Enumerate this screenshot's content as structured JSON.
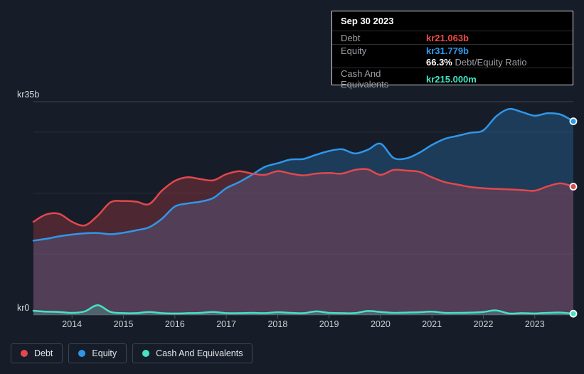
{
  "page": {
    "background": "#171d28"
  },
  "tooltip": {
    "date": "Sep 30 2023",
    "debt": {
      "label": "Debt",
      "value": "kr21.063b",
      "color": "#ef4a45"
    },
    "equity": {
      "label": "Equity",
      "value": "kr31.779b",
      "color": "#2d9bf0"
    },
    "ratio": {
      "value": "66.3%",
      "label": " Debt/Equity Ratio"
    },
    "cash": {
      "label": "Cash And Equivalents",
      "value": "kr215.000m",
      "color": "#40e6c6"
    }
  },
  "legend": {
    "items": [
      {
        "label": "Debt",
        "color": "#e2484d"
      },
      {
        "label": "Equity",
        "color": "#2f97ea"
      },
      {
        "label": "Cash And Equivalents",
        "color": "#45e3c4"
      }
    ]
  },
  "chart_data": {
    "type": "area",
    "title": "Debt and Equity history (kr, billions)",
    "xlabel": "",
    "ylabel": "",
    "ylim": [
      0,
      35
    ],
    "grid": true,
    "legend_position": "bottom-left",
    "y_ticks": [
      {
        "value": 35,
        "label": "kr35b"
      },
      {
        "value": 0,
        "label": "kr0"
      }
    ],
    "y_gridlines": [
      35,
      30,
      20,
      10,
      0
    ],
    "x_ticks": [
      2014,
      2015,
      2016,
      2017,
      2018,
      2019,
      2020,
      2021,
      2022,
      2023
    ],
    "x": [
      2013.25,
      2013.5,
      2013.75,
      2014.0,
      2014.25,
      2014.5,
      2014.75,
      2015.0,
      2015.25,
      2015.5,
      2015.75,
      2016.0,
      2016.25,
      2016.5,
      2016.75,
      2017.0,
      2017.25,
      2017.5,
      2017.75,
      2018.0,
      2018.25,
      2018.5,
      2018.75,
      2019.0,
      2019.25,
      2019.5,
      2019.75,
      2020.0,
      2020.25,
      2020.5,
      2020.75,
      2021.0,
      2021.25,
      2021.5,
      2021.75,
      2022.0,
      2022.25,
      2022.5,
      2022.75,
      2023.0,
      2023.25,
      2023.5,
      2023.75
    ],
    "series": [
      {
        "name": "Equity",
        "color": "#2f97ea",
        "fill_opacity": 0.26,
        "values": [
          12.2,
          12.5,
          12.9,
          13.2,
          13.4,
          13.45,
          13.25,
          13.5,
          13.9,
          14.4,
          15.8,
          17.8,
          18.3,
          18.6,
          19.2,
          20.8,
          21.8,
          23.0,
          24.3,
          24.9,
          25.5,
          25.6,
          26.3,
          26.9,
          27.2,
          26.5,
          27.1,
          28.1,
          25.8,
          25.7,
          26.6,
          27.9,
          28.9,
          29.4,
          29.9,
          30.3,
          32.6,
          33.8,
          33.3,
          32.7,
          33.1,
          32.9,
          31.779
        ]
      },
      {
        "name": "Debt",
        "color": "#e2484d",
        "fill_opacity": 0.27,
        "values": [
          15.3,
          16.5,
          16.6,
          15.3,
          14.7,
          16.3,
          18.5,
          18.7,
          18.6,
          18.2,
          20.4,
          22.0,
          22.6,
          22.3,
          22.1,
          23.1,
          23.6,
          23.2,
          23.0,
          23.6,
          23.2,
          22.9,
          23.2,
          23.3,
          23.2,
          23.8,
          23.9,
          23.0,
          23.8,
          23.7,
          23.5,
          22.6,
          21.8,
          21.4,
          21.0,
          20.8,
          20.7,
          20.6,
          20.5,
          20.4,
          21.1,
          21.6,
          21.063
        ]
      },
      {
        "name": "Cash And Equivalents",
        "color": "#45e3c4",
        "fill_opacity": 0.22,
        "values": [
          0.7,
          0.55,
          0.5,
          0.35,
          0.6,
          1.6,
          0.5,
          0.3,
          0.3,
          0.5,
          0.3,
          0.25,
          0.3,
          0.35,
          0.5,
          0.3,
          0.3,
          0.35,
          0.3,
          0.45,
          0.35,
          0.3,
          0.6,
          0.35,
          0.3,
          0.3,
          0.65,
          0.5,
          0.35,
          0.4,
          0.45,
          0.55,
          0.35,
          0.35,
          0.4,
          0.5,
          0.75,
          0.25,
          0.3,
          0.25,
          0.35,
          0.4,
          0.215
        ]
      }
    ]
  }
}
